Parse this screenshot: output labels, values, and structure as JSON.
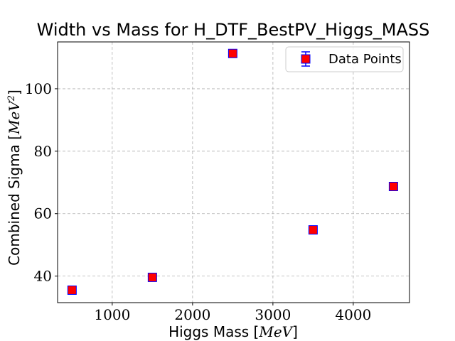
{
  "chart_data": {
    "type": "scatter",
    "title": "Width vs Mass for H_DTF_BestPV_Higgs_MASS",
    "xlabel": "Higgs Mass [MeV]",
    "xlabel_prefix": "Higgs Mass [",
    "xlabel_unit": "MeV",
    "xlabel_suffix": "]",
    "ylabel": "Combined Sigma [MeV^2]",
    "ylabel_prefix": "Combined Sigma [",
    "ylabel_unit": "MeV",
    "ylabel_exp": "2",
    "ylabel_suffix": "]",
    "xlim": [
      320,
      4700
    ],
    "ylim": [
      31.5,
      115
    ],
    "xticks": [
      1000,
      2000,
      3000,
      4000
    ],
    "xtick_labels": [
      "1000",
      "2000",
      "3000",
      "4000"
    ],
    "yticks": [
      40,
      60,
      80,
      100
    ],
    "ytick_labels": [
      "40",
      "60",
      "80",
      "100"
    ],
    "grid": true,
    "legend_position": "top-right",
    "series": [
      {
        "name": "Data Points",
        "marker": "square",
        "marker_color": "#ff0000",
        "edge_color": "#0000ff",
        "errorbar_color": "#0000ff",
        "x": [
          500,
          1500,
          2500,
          3500,
          4500
        ],
        "y": [
          35.5,
          39.6,
          111.3,
          54.8,
          68.7
        ],
        "yerr": [
          0.4,
          0.4,
          0.5,
          0.4,
          0.4
        ]
      }
    ]
  }
}
